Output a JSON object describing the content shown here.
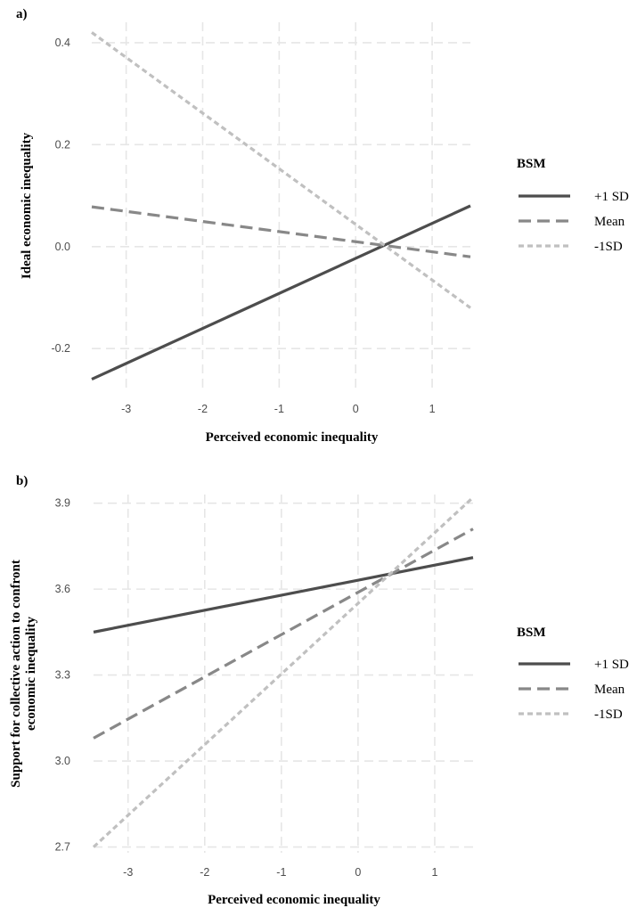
{
  "chart_data": [
    {
      "panel_label": "a)",
      "type": "line",
      "xlabel": "Perceived economic inequality",
      "ylabel": "Ideal economic inequality",
      "xlim": [
        -3.45,
        1.5
      ],
      "ylim": [
        -0.28,
        0.44
      ],
      "x_ticks": [
        -3,
        -2,
        -1,
        0,
        1
      ],
      "x_tick_labels": [
        "-3",
        "-2",
        "-1",
        "0",
        "1"
      ],
      "y_ticks": [
        -0.2,
        0.0,
        0.2,
        0.4
      ],
      "y_tick_labels": [
        "-0.2",
        "0.0",
        "0.2",
        "0.4"
      ],
      "grid": true,
      "legend_title": "BSM",
      "legend_position": "right",
      "series": [
        {
          "name": "+1 SD",
          "x": [
            -3.45,
            1.5
          ],
          "y": [
            -0.26,
            0.08
          ],
          "style": "solid",
          "color": "#4d4d4d"
        },
        {
          "name": "Mean",
          "x": [
            -3.45,
            1.5
          ],
          "y": [
            0.078,
            -0.02
          ],
          "style": "dashed",
          "color": "#888888"
        },
        {
          "name": "-1SD",
          "x": [
            -3.45,
            1.5
          ],
          "y": [
            0.42,
            -0.12
          ],
          "style": "dotted",
          "color": "#c0c0c0"
        }
      ]
    },
    {
      "panel_label": "b)",
      "type": "line",
      "xlabel": "Perceived economic inequality",
      "ylabel": "Support for collective action to confront economic inequality",
      "ylabel_lines": [
        "Support for collective action to confront",
        "economic inequality"
      ],
      "xlim": [
        -3.45,
        1.5
      ],
      "ylim": [
        2.68,
        3.93
      ],
      "x_ticks": [
        -3,
        -2,
        -1,
        0,
        1
      ],
      "x_tick_labels": [
        "-3",
        "-2",
        "-1",
        "0",
        "1"
      ],
      "y_ticks": [
        2.7,
        3.0,
        3.3,
        3.6,
        3.9
      ],
      "y_tick_labels": [
        "2.7",
        "3.0",
        "3.3",
        "3.6",
        "3.9"
      ],
      "grid": true,
      "legend_title": "BSM",
      "legend_position": "right",
      "series": [
        {
          "name": "+1 SD",
          "x": [
            -3.45,
            1.5
          ],
          "y": [
            3.45,
            3.71
          ],
          "style": "solid",
          "color": "#4d4d4d"
        },
        {
          "name": "Mean",
          "x": [
            -3.45,
            1.5
          ],
          "y": [
            3.08,
            3.81
          ],
          "style": "dashed",
          "color": "#888888"
        },
        {
          "name": "-1SD",
          "x": [
            -3.45,
            1.5
          ],
          "y": [
            2.7,
            3.92
          ],
          "style": "dotted",
          "color": "#c0c0c0"
        }
      ]
    }
  ]
}
